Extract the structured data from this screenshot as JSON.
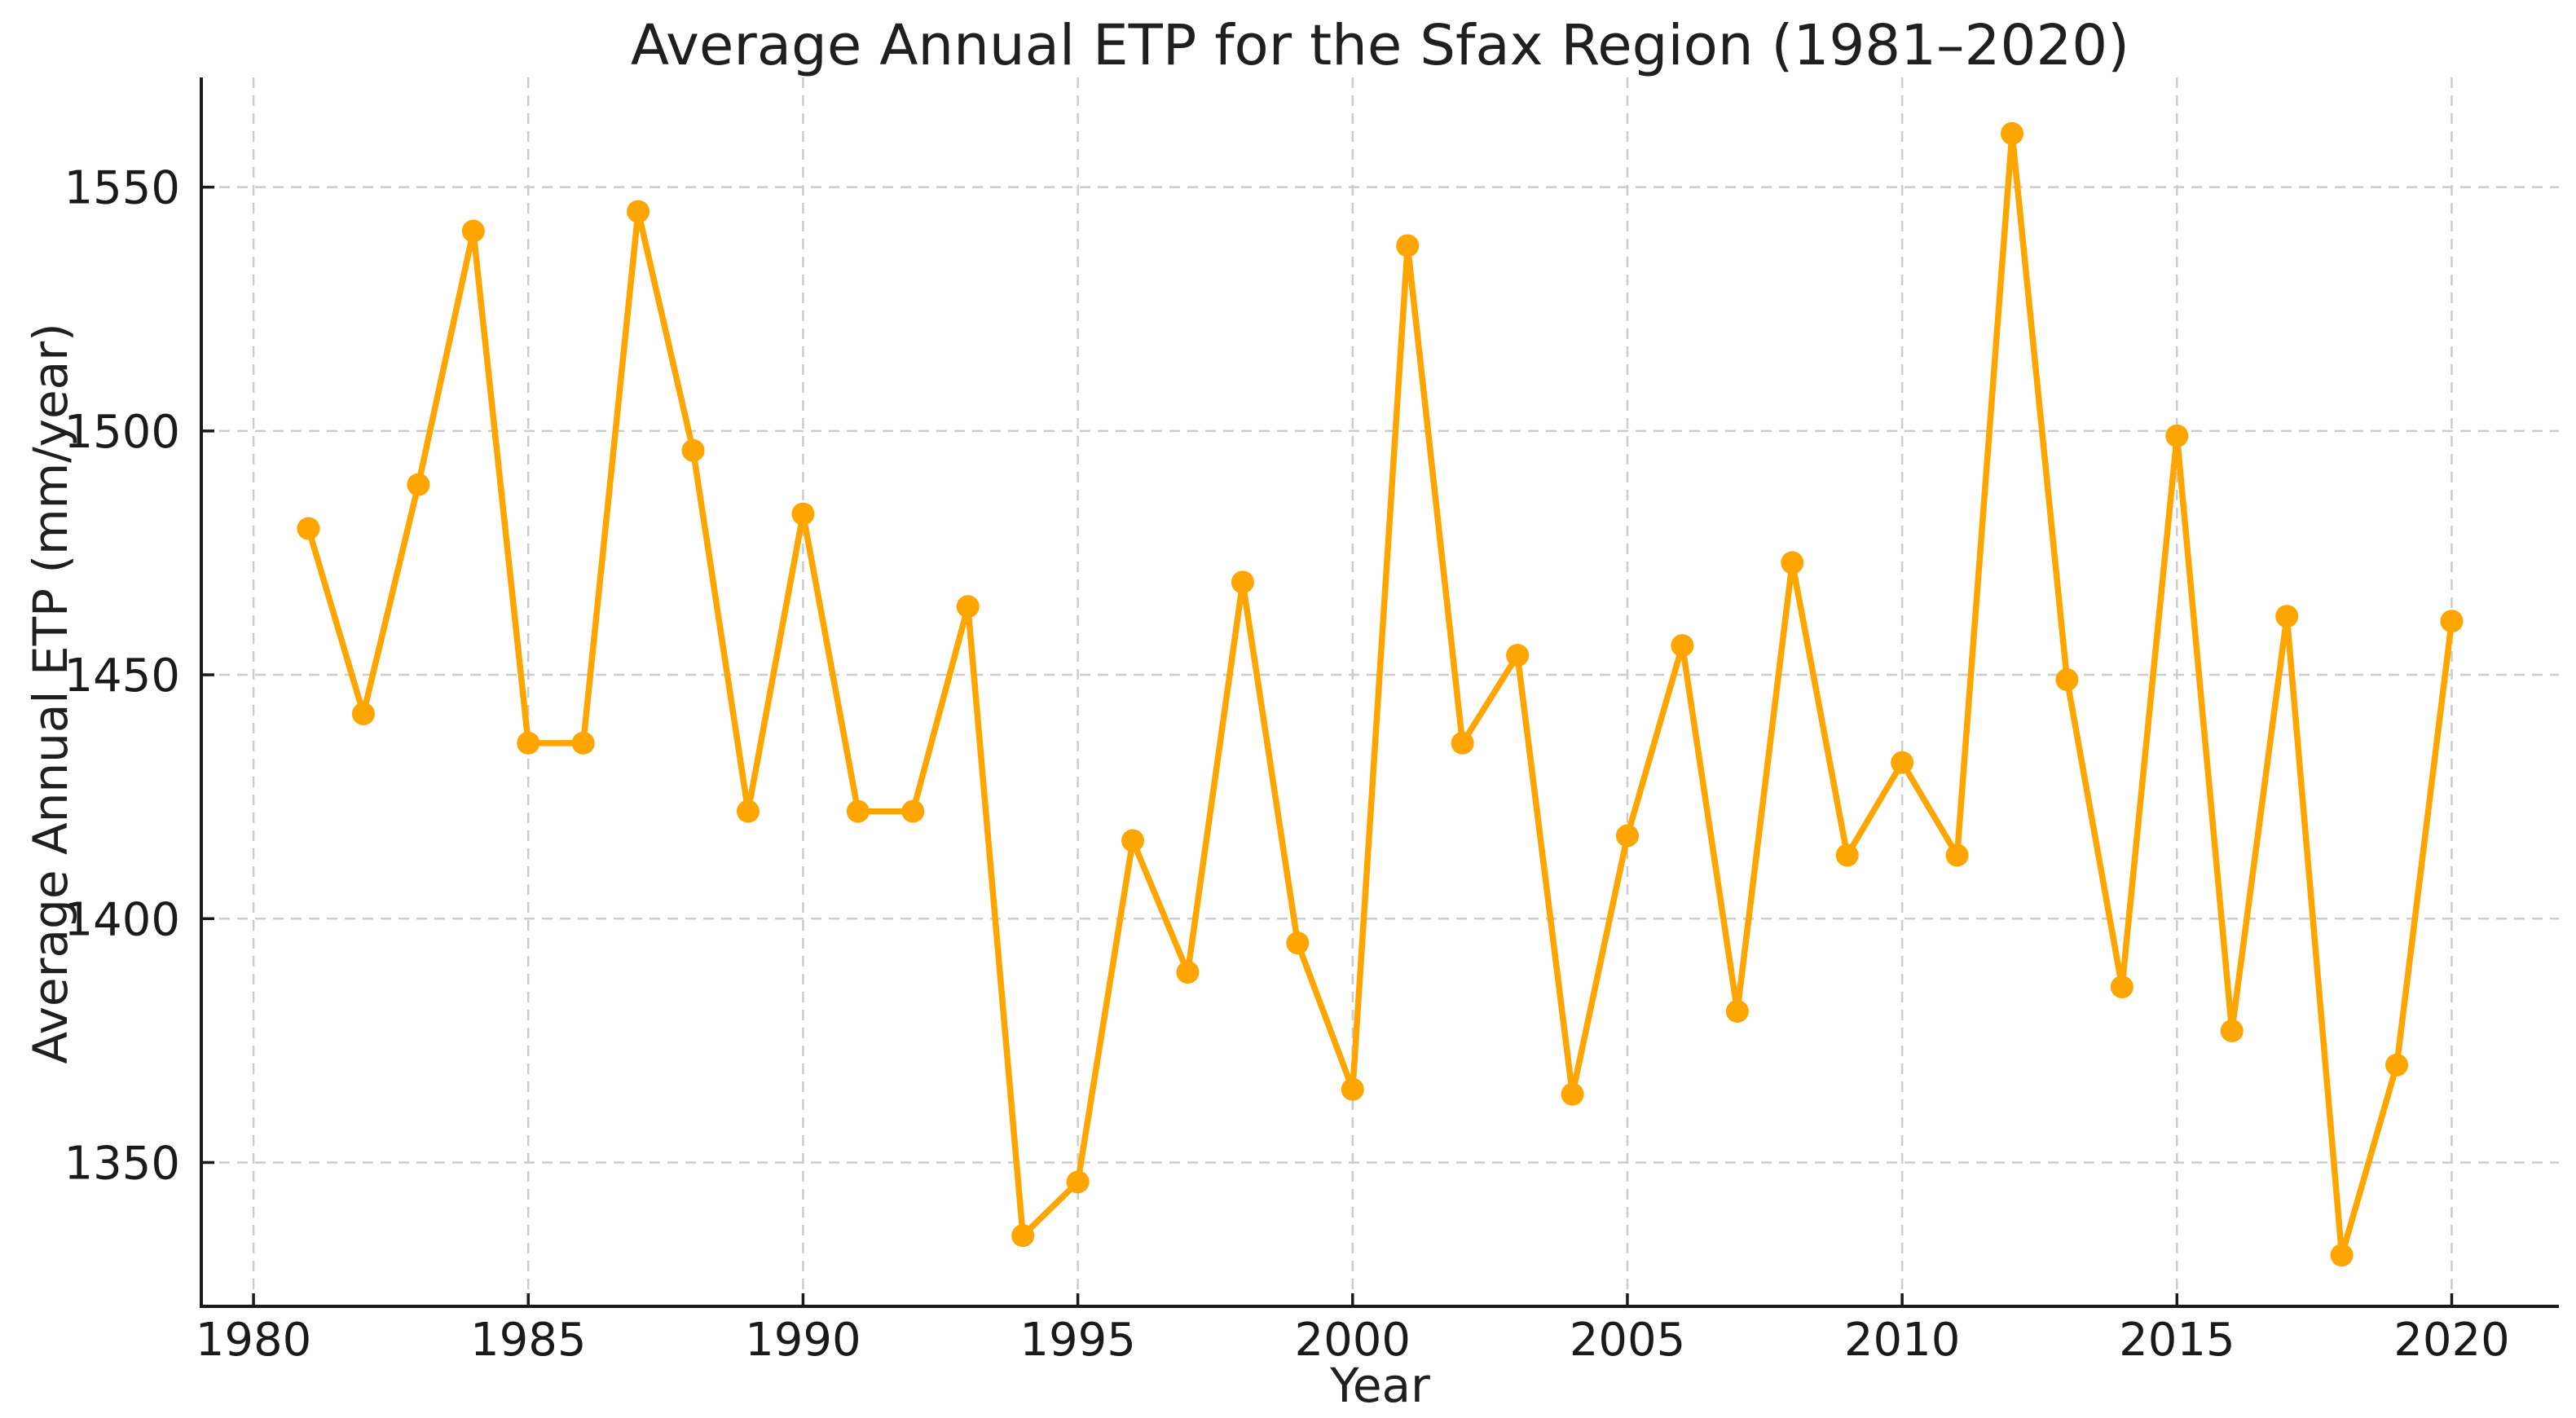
{
  "chart_data": {
    "type": "line",
    "title": "Average Annual ETP for the Sfax Region (1981–2020)",
    "xlabel": "Year",
    "ylabel": "Average Annual ETP (mm/year)",
    "x": [
      1981,
      1982,
      1983,
      1984,
      1985,
      1986,
      1987,
      1988,
      1989,
      1990,
      1991,
      1992,
      1993,
      1994,
      1995,
      1996,
      1997,
      1998,
      1999,
      2000,
      2001,
      2002,
      2003,
      2004,
      2005,
      2006,
      2007,
      2008,
      2009,
      2010,
      2011,
      2012,
      2013,
      2014,
      2015,
      2016,
      2017,
      2018,
      2019,
      2020
    ],
    "values": [
      1480,
      1442,
      1489,
      1541,
      1436,
      1436,
      1545,
      1496,
      1422,
      1483,
      1422,
      1422,
      1464,
      1335,
      1346,
      1416,
      1389,
      1469,
      1395,
      1365,
      1538,
      1436,
      1454,
      1364,
      1417,
      1456,
      1381,
      1473,
      1413,
      1432,
      1413,
      1561,
      1449,
      1386,
      1499,
      1377,
      1462,
      1331,
      1370,
      1461
    ],
    "xticks": [
      1980,
      1985,
      1990,
      1995,
      2000,
      2005,
      2010,
      2015,
      2020
    ],
    "yticks": [
      1350,
      1400,
      1450,
      1500,
      1550
    ],
    "xlim": [
      1979.05,
      2021.95
    ],
    "ylim": [
      1320.5,
      1572.5
    ],
    "grid": true,
    "grid_style": "dashed",
    "legend_position": "none",
    "line_color": "#FFA500",
    "marker": "circle",
    "grid_color": "#cccccc",
    "spine_color": "#1a1a1a",
    "text_color": "#1a1a1a",
    "background": "#ffffff"
  }
}
